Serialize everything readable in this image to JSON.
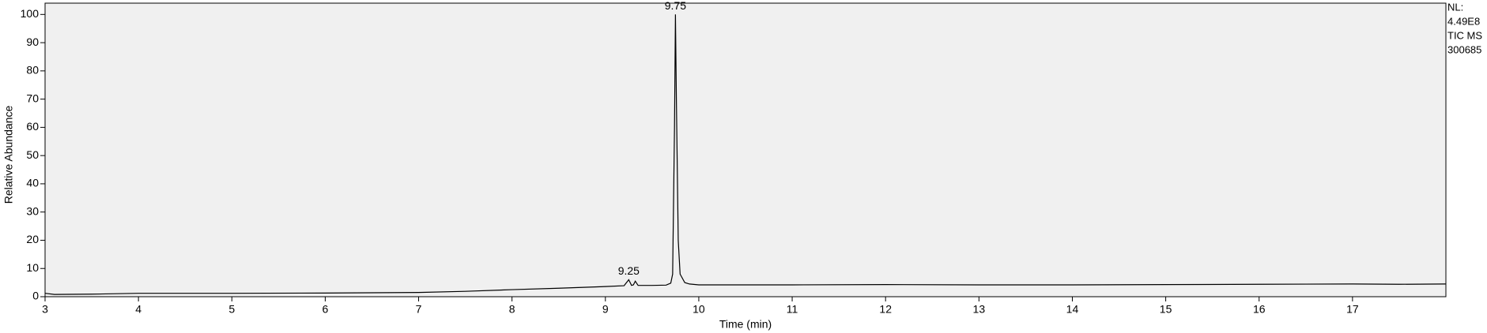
{
  "chart_data": {
    "type": "line",
    "x_label": "Time (min)",
    "y_label": "Relative Abundance",
    "x": [
      3,
      3.1,
      3.5,
      4,
      5,
      6,
      7,
      7.5,
      8,
      8.5,
      9,
      9.2,
      9.25,
      9.28,
      9.3,
      9.32,
      9.35,
      9.5,
      9.65,
      9.7,
      9.72,
      9.74,
      9.75,
      9.76,
      9.78,
      9.8,
      9.85,
      9.9,
      10,
      11,
      12,
      13,
      14,
      15,
      16,
      17,
      17.5,
      18
    ],
    "series": [
      {
        "color": "#000000",
        "values": [
          1.2,
          0.8,
          0.9,
          1.2,
          1.2,
          1.3,
          1.5,
          1.9,
          2.5,
          3.0,
          3.6,
          3.9,
          6.0,
          4.0,
          4.2,
          5.5,
          4.0,
          4.0,
          4.1,
          4.8,
          8,
          60,
          100,
          70,
          20,
          8,
          5,
          4.5,
          4.2,
          4.2,
          4.3,
          4.2,
          4.2,
          4.3,
          4.4,
          4.5,
          4.4,
          4.5
        ]
      }
    ],
    "xlim": [
      3,
      18
    ],
    "ylim": [
      0,
      104
    ],
    "xticks": [
      3,
      4,
      5,
      6,
      7,
      8,
      9,
      10,
      11,
      12,
      13,
      14,
      15,
      16,
      17
    ],
    "yticks": [
      0,
      10,
      20,
      30,
      40,
      50,
      60,
      70,
      80,
      90,
      100
    ],
    "peak_labels": [
      {
        "x": 9.25,
        "y": 6.0,
        "label": "9.25"
      },
      {
        "x": 9.75,
        "y": 100,
        "label": "9.75"
      }
    ],
    "info": [
      "NL:",
      "4.49E8",
      "TIC  MS",
      "300685"
    ],
    "background": "#f0f0f0"
  }
}
